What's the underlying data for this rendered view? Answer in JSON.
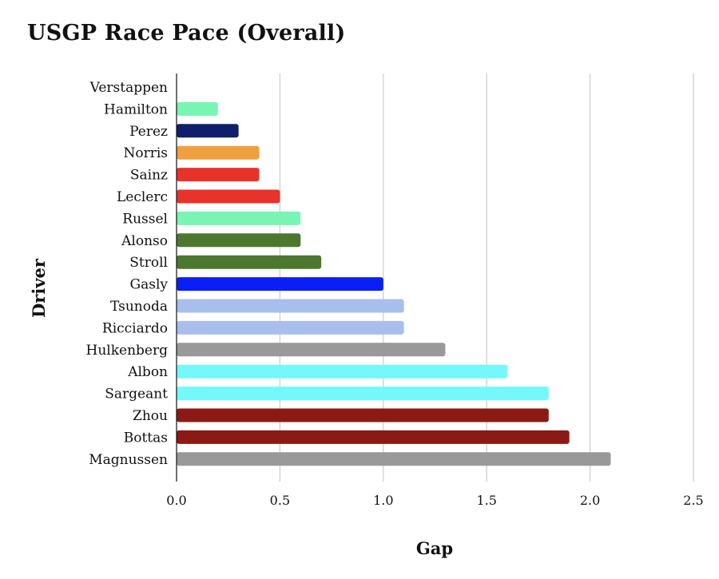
{
  "chart_data": {
    "type": "bar",
    "orientation": "horizontal",
    "title": "USGP Race Pace (Overall)",
    "xlabel": "Gap",
    "ylabel": "Driver",
    "xlim": [
      0,
      2.5
    ],
    "xticks": [
      "0.0",
      "0.5",
      "1.0",
      "1.5",
      "2.0",
      "2.5"
    ],
    "grid": "vertical",
    "legend": "none",
    "categories": [
      "Verstappen",
      "Hamilton",
      "Perez",
      "Norris",
      "Sainz",
      "Leclerc",
      "Russel",
      "Alonso",
      "Stroll",
      "Gasly",
      "Tsunoda",
      "Ricciardo",
      "Hulkenberg",
      "Albon",
      "Sargeant",
      "Zhou",
      "Bottas",
      "Magnussen"
    ],
    "values": [
      0.0,
      0.2,
      0.3,
      0.4,
      0.4,
      0.5,
      0.6,
      0.6,
      0.7,
      1.0,
      1.1,
      1.1,
      1.3,
      1.6,
      1.8,
      1.8,
      1.9,
      2.1
    ],
    "colors": [
      "#78f5b3",
      "#78f5b3",
      "#101f6b",
      "#f0a03e",
      "#e8332a",
      "#e8332a",
      "#78f5b3",
      "#4b782e",
      "#4b782e",
      "#0a1ff5",
      "#a8bfee",
      "#a8bfee",
      "#999999",
      "#74f8fa",
      "#74f8fa",
      "#8b1a15",
      "#8b1a15",
      "#999999"
    ]
  }
}
